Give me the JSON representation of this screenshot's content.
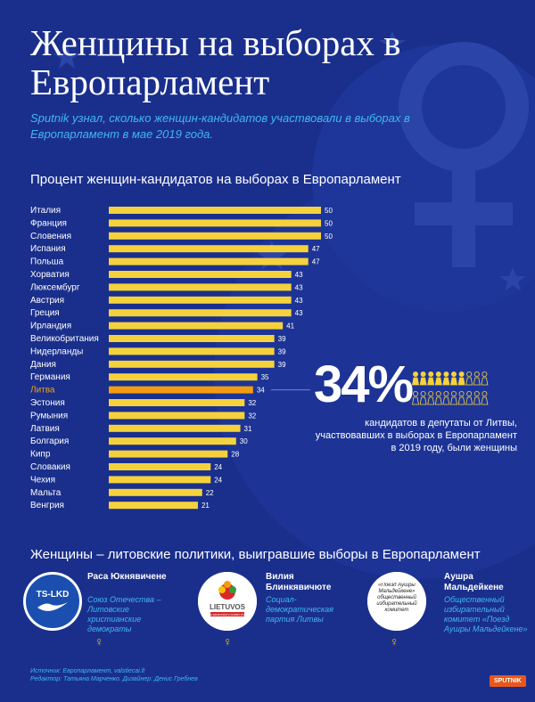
{
  "title": "Женщины на выборах в Европарламент",
  "lead": "Sputnik узнал, сколько женщин-кандидатов участвовали в выборах в Европарламент в мае 2019 года.",
  "colors": {
    "background": "#1a2f8c",
    "bar": "#f5d23c",
    "highlight": "#f39c12",
    "accent": "#41b7f0"
  },
  "highlight_category": "Литва",
  "chart_data": {
    "type": "bar",
    "orientation": "horizontal",
    "title": "Процент женщин-кандидатов на выборах в Европарламент",
    "categories": [
      "Италия",
      "Франция",
      "Словения",
      "Испания",
      "Польша",
      "Хорватия",
      "Люксембург",
      "Австрия",
      "Греция",
      "Ирландия",
      "Великобритания",
      "Нидерланды",
      "Дания",
      "Германия",
      "Литва",
      "Эстония",
      "Румыния",
      "Латвия",
      "Болгария",
      "Кипр",
      "Словакия",
      "Чехия",
      "Мальта",
      "Венгрия"
    ],
    "values": [
      50,
      50,
      50,
      47,
      47,
      43,
      43,
      43,
      43,
      41,
      39,
      39,
      39,
      35,
      34,
      32,
      32,
      31,
      30,
      28,
      24,
      24,
      22,
      21
    ],
    "xlim": [
      0,
      50
    ],
    "grid": false,
    "data_labels": true
  },
  "callout": {
    "value": "34%",
    "text": "кандидатов в депутаты от Литвы, участвовавших в выборах в Европарламент в 2019 году, были женщины",
    "icons_total": 20,
    "icons_highlight": 7
  },
  "section_title": "Женщины – литовские политики, выигравшие выборы в Европарламент",
  "candidates": [
    {
      "name": "Раса Юкнявичене",
      "party": "Союз Отечества – Литовские христианские демократы",
      "logo_text": "TS-LKD",
      "logo_icon": "swallow-icon"
    },
    {
      "name": "Вилия Блинкявичюте",
      "party": "Социал-демократическая партия Литвы",
      "logo_text": "LIETUVOS",
      "logo_sub": "SOCIALDEMOKRATŲ DARBO PARTIJA",
      "logo_icon": "flower-icon"
    },
    {
      "name": "Аушра Мальдейкене",
      "party": "Общественный избирательный комитет «Поезд Аушры Мальдейкене»",
      "logo_text": "«Поезд Аушры Мальдейкене» общественный избирательный комитет"
    }
  ],
  "source": "Источник: Европарламент, valstiecai.lt",
  "credits": "Редактор: Татьяна Марченко. Дизайнер: Денис Гребнев",
  "brand": "SPUTNIK"
}
